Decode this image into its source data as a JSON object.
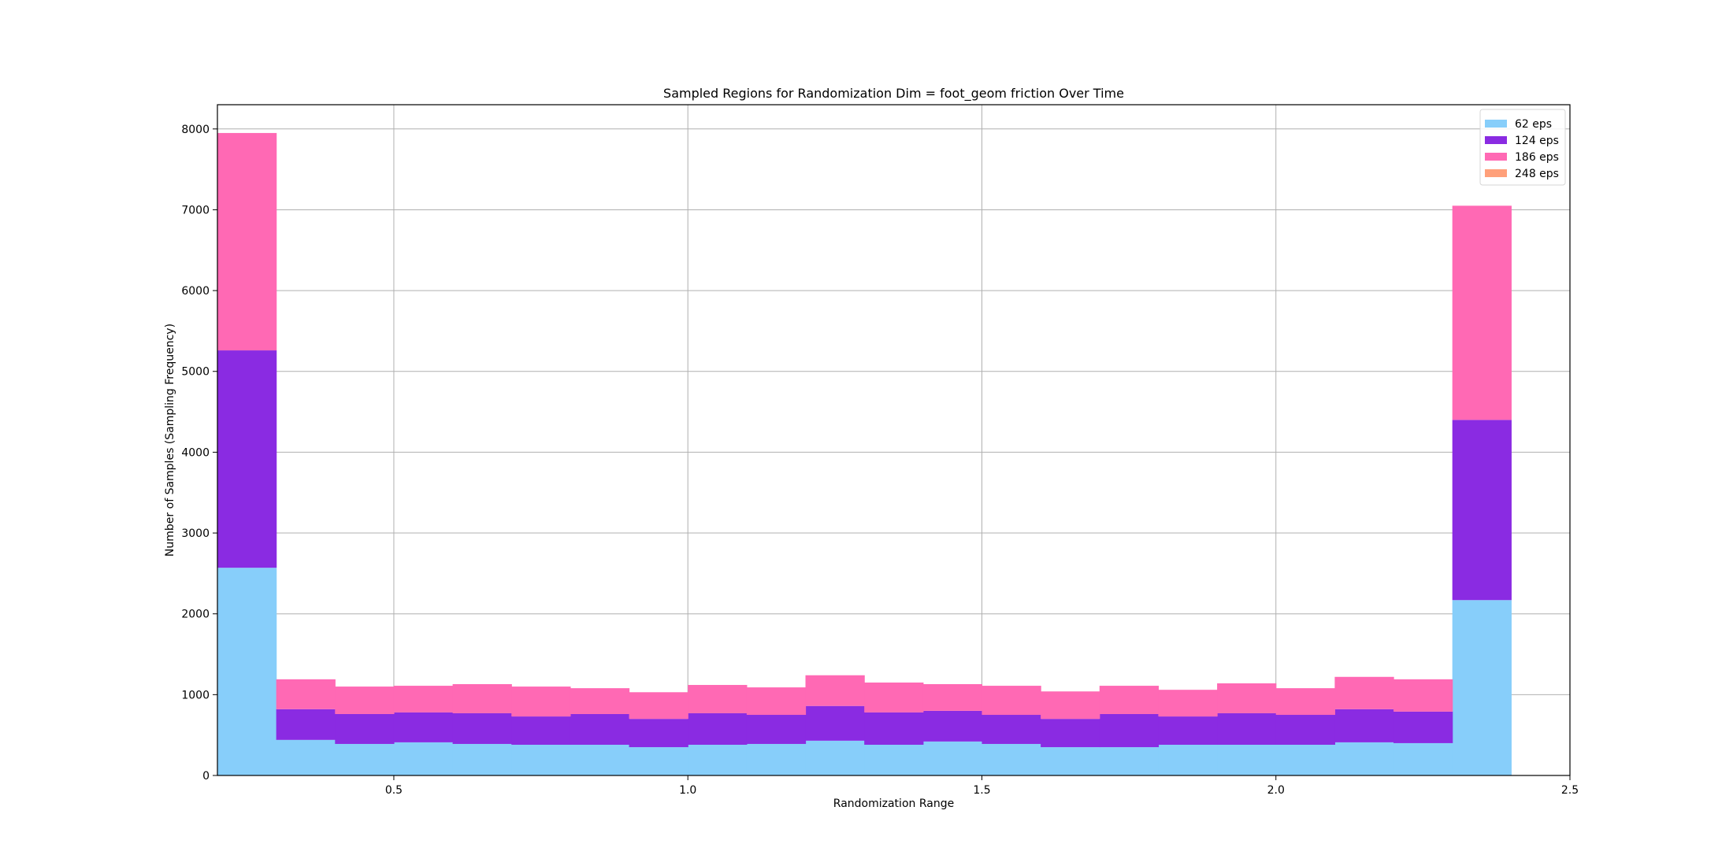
{
  "chart_data": {
    "type": "bar",
    "title": "Sampled Regions for Randomization Dim = foot_geom friction Over Time",
    "xlabel": "Randomization Range",
    "ylabel": "Number of Samples (Sampling Frequency)",
    "xlim": [
      0.2,
      2.5
    ],
    "ylim": [
      0,
      8300
    ],
    "xticks": [
      0.5,
      1.0,
      1.5,
      2.0,
      2.5
    ],
    "xtick_labels": [
      "0.5",
      "1.0",
      "1.5",
      "2.0",
      "2.5"
    ],
    "yticks": [
      0,
      1000,
      2000,
      3000,
      4000,
      5000,
      6000,
      7000,
      8000
    ],
    "ytick_labels": [
      "0",
      "1000",
      "2000",
      "3000",
      "4000",
      "5000",
      "6000",
      "7000",
      "8000"
    ],
    "grid": true,
    "legend_position": "top-right",
    "bin_edges": [
      0.2,
      0.3,
      0.4,
      0.5,
      0.6,
      0.7,
      0.8,
      0.9,
      1.0,
      1.1,
      1.2,
      1.3,
      1.4,
      1.5,
      1.6,
      1.7,
      1.8,
      1.9,
      2.0,
      2.1,
      2.2,
      2.3,
      2.4
    ],
    "stacked": true,
    "series": [
      {
        "name": "62 eps",
        "color": "#87CEFA",
        "values": [
          2570,
          440,
          390,
          410,
          390,
          380,
          380,
          350,
          380,
          390,
          430,
          380,
          420,
          390,
          350,
          350,
          380,
          380,
          380,
          410,
          400,
          2170
        ]
      },
      {
        "name": "124 eps",
        "color": "#8A2BE2",
        "values": [
          2690,
          380,
          370,
          370,
          380,
          350,
          380,
          350,
          390,
          360,
          430,
          400,
          380,
          360,
          350,
          410,
          350,
          390,
          370,
          410,
          390,
          2230
        ]
      },
      {
        "name": "186 eps",
        "color": "#FF69B4",
        "values": [
          2690,
          370,
          340,
          330,
          360,
          370,
          320,
          330,
          350,
          340,
          380,
          370,
          330,
          360,
          340,
          350,
          330,
          370,
          330,
          400,
          400,
          2650
        ]
      },
      {
        "name": "248 eps",
        "color": "#FFA07A",
        "values": [
          0,
          0,
          0,
          0,
          0,
          0,
          0,
          0,
          0,
          0,
          0,
          0,
          0,
          0,
          0,
          0,
          0,
          0,
          0,
          0,
          0,
          0
        ]
      }
    ]
  }
}
